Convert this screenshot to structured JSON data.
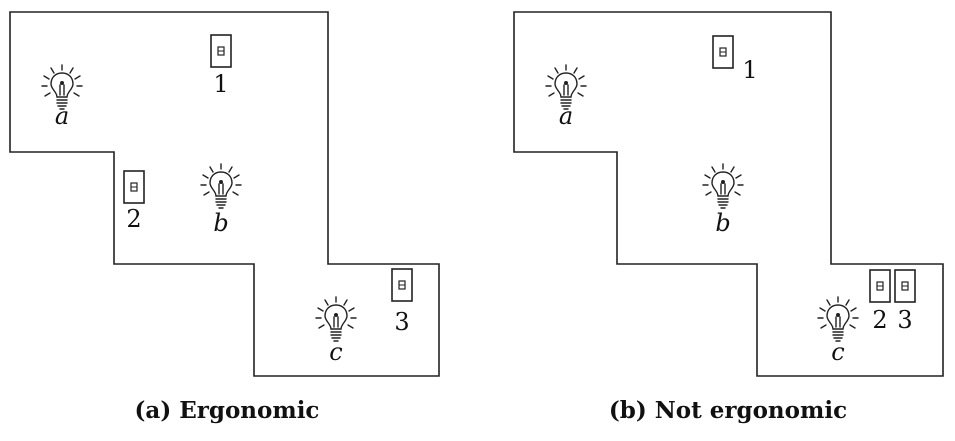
{
  "panels": [
    {
      "caption": "(a) Ergonomic",
      "lights": [
        {
          "label": "a"
        },
        {
          "label": "b"
        },
        {
          "label": "c"
        }
      ],
      "switches": [
        {
          "label": "1"
        },
        {
          "label": "2"
        },
        {
          "label": "3"
        }
      ]
    },
    {
      "caption": "(b) Not ergonomic",
      "lights": [
        {
          "label": "a"
        },
        {
          "label": "b"
        },
        {
          "label": "c"
        }
      ],
      "switches": [
        {
          "label": "1"
        },
        {
          "label": "2"
        },
        {
          "label": "3"
        }
      ]
    }
  ]
}
